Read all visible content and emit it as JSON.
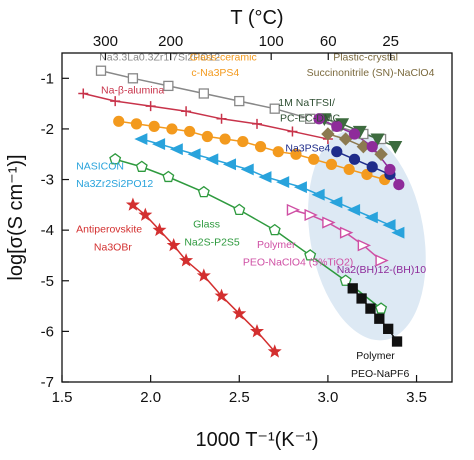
{
  "chart_data": {
    "type": "scatter",
    "xlabel": "1000 T⁻¹(K⁻¹)",
    "ylabel": "log[σ(S cm⁻¹)]",
    "top_axis_label": "T (°C)",
    "xlim": [
      1.5,
      3.7
    ],
    "ylim": [
      -7,
      -0.5
    ],
    "x_ticks": [
      1.5,
      2.0,
      2.5,
      3.0,
      3.5
    ],
    "x_tick_labels": [
      "1.5",
      "2.0",
      "2.5",
      "3.0",
      "3.5"
    ],
    "y_ticks": [
      -7,
      -6,
      -5,
      -4,
      -3,
      -2,
      -1
    ],
    "y_tick_labels": [
      "-7",
      "-6",
      "-5",
      "-4",
      "-3",
      "-2",
      "-1"
    ],
    "top_ticks": [
      {
        "label": "300",
        "x": 1.745
      },
      {
        "label": "200",
        "x": 2.113
      },
      {
        "label": "100",
        "x": 2.68
      },
      {
        "label": "60",
        "x": 3.002
      },
      {
        "label": "25",
        "x": 3.354
      }
    ],
    "grid": false,
    "highlight_region": {
      "cx": 3.22,
      "cy": -4.1,
      "rx": 0.32,
      "ry": 2.1,
      "color": "#dde9f4"
    },
    "series": [
      {
        "name": "Na3.3La0.3Zr1.7Si2PO12",
        "marker": "square-open",
        "color": "#888888",
        "x": [
          1.72,
          1.9,
          2.1,
          2.3,
          2.5,
          2.7,
          2.9,
          3.05,
          3.2,
          3.3
        ],
        "y": [
          -0.85,
          -1.0,
          -1.15,
          -1.3,
          -1.45,
          -1.6,
          -1.8,
          -1.95,
          -2.1,
          -2.2
        ]
      },
      {
        "name": "Na-β-alumina",
        "marker": "plus",
        "color": "#c8334a",
        "x": [
          1.62,
          1.8,
          2.0,
          2.2,
          2.4,
          2.6,
          2.8,
          3.0
        ],
        "y": [
          -1.3,
          -1.45,
          -1.55,
          -1.65,
          -1.8,
          -1.9,
          -2.05,
          -2.2
        ]
      },
      {
        "name": "Glass-ceramic c-Na3PS4",
        "marker": "circle",
        "color": "#f39a1e",
        "x": [
          1.82,
          1.92,
          2.02,
          2.12,
          2.22,
          2.32,
          2.42,
          2.52,
          2.62,
          2.72,
          2.82,
          2.92,
          3.02,
          3.12,
          3.22,
          3.32
        ],
        "y": [
          -1.85,
          -1.9,
          -1.95,
          -2.0,
          -2.05,
          -2.15,
          -2.2,
          -2.25,
          -2.35,
          -2.45,
          -2.5,
          -2.6,
          -2.7,
          -2.8,
          -2.9,
          -3.0
        ]
      },
      {
        "name": "NASICON Na3Zr2Si2PO12",
        "marker": "triangle-left",
        "color": "#29a3dc",
        "x": [
          1.95,
          2.05,
          2.15,
          2.25,
          2.35,
          2.45,
          2.55,
          2.65,
          2.75,
          2.85,
          2.95,
          3.05,
          3.15,
          3.25,
          3.35,
          3.4
        ],
        "y": [
          -2.2,
          -2.3,
          -2.4,
          -2.5,
          -2.6,
          -2.7,
          -2.8,
          -2.95,
          -3.05,
          -3.15,
          -3.3,
          -3.45,
          -3.6,
          -3.75,
          -3.9,
          -4.05
        ]
      },
      {
        "name": "Glass Na2S-P2S5",
        "marker": "pentagon-open",
        "color": "#2e9a3e",
        "x": [
          1.8,
          1.95,
          2.1,
          2.3,
          2.5,
          2.7,
          2.9,
          3.1,
          3.3
        ],
        "y": [
          -2.6,
          -2.75,
          -2.95,
          -3.25,
          -3.6,
          -4.0,
          -4.5,
          -5.0,
          -5.55
        ]
      },
      {
        "name": "Antiperovskite Na3OBr",
        "marker": "star",
        "color": "#d32f2f",
        "x": [
          1.9,
          1.97,
          2.05,
          2.13,
          2.2,
          2.3,
          2.4,
          2.5,
          2.6,
          2.7
        ],
        "y": [
          -3.5,
          -3.7,
          -4.0,
          -4.3,
          -4.6,
          -4.9,
          -5.3,
          -5.65,
          -6.0,
          -6.4
        ]
      },
      {
        "name": "Na3PSe4",
        "marker": "circle",
        "color": "#1f2c8a",
        "x": [
          3.05,
          3.15,
          3.25,
          3.35
        ],
        "y": [
          -2.45,
          -2.6,
          -2.75,
          -2.9
        ]
      },
      {
        "name": "1M NaTFSI/ PC-EC-DMC",
        "marker": "triangle-down",
        "color": "#3d6b3f",
        "x": [
          2.98,
          3.08,
          3.18,
          3.28,
          3.38
        ],
        "y": [
          -1.8,
          -1.9,
          -2.05,
          -2.2,
          -2.35
        ]
      },
      {
        "name": "Plastic-crystal Succinonitrile (SN)-NaClO4",
        "marker": "diamond",
        "color": "#8c7a50",
        "x": [
          3.0,
          3.1,
          3.2,
          3.3
        ],
        "y": [
          -2.1,
          -2.2,
          -2.35,
          -2.5
        ]
      },
      {
        "name": "Na2(BH)12-(BH)10",
        "marker": "circle",
        "color": "#8e2b9a",
        "x": [
          2.95,
          3.05,
          3.15,
          3.25,
          3.35,
          3.4
        ],
        "y": [
          -1.8,
          -1.95,
          -2.1,
          -2.35,
          -2.8,
          -3.1
        ]
      },
      {
        "name": "Polymer PEO-NaClO4 (5%TiO2)",
        "marker": "triangle-right-open",
        "color": "#cf4fa4",
        "x": [
          2.8,
          2.9,
          3.0,
          3.1,
          3.2,
          3.3
        ],
        "y": [
          -3.6,
          -3.7,
          -3.85,
          -4.05,
          -4.3,
          -4.6
        ]
      },
      {
        "name": "Polymer PEO-NaPF6",
        "marker": "square",
        "color": "#111111",
        "x": [
          3.14,
          3.19,
          3.24,
          3.29,
          3.34,
          3.39
        ],
        "y": [
          -5.15,
          -5.35,
          -5.55,
          -5.75,
          -5.95,
          -6.2
        ]
      }
    ],
    "annotations": [
      {
        "text": "Na3.3La0.3Zr1.7Si2PO12",
        "x": 1.71,
        "y": -0.65,
        "color": "#888888"
      },
      {
        "text": "Na-β-alumina",
        "x": 1.72,
        "y": -1.3,
        "color": "#c8334a"
      },
      {
        "text": "Glass-ceramic",
        "x": 2.22,
        "y": -0.65,
        "color": "#f39a1e"
      },
      {
        "text": "c-Na3PS4",
        "x": 2.23,
        "y": -0.95,
        "color": "#f39a1e"
      },
      {
        "text": "Plastic-crystal",
        "x": 3.03,
        "y": -0.65,
        "color": "#7b6a3e"
      },
      {
        "text": "Succinonitrile (SN)-NaClO4",
        "x": 2.88,
        "y": -0.95,
        "color": "#7b6a3e"
      },
      {
        "text": "1M NaTFSI/",
        "x": 2.72,
        "y": -1.55,
        "color": "#2f4f33"
      },
      {
        "text": "PC-EC-DMC",
        "x": 2.73,
        "y": -1.85,
        "color": "#2f4f33"
      },
      {
        "text": "Na3PSe4",
        "x": 2.76,
        "y": -2.45,
        "color": "#1f2c8a"
      },
      {
        "text": "NASICON",
        "x": 1.58,
        "y": -2.8,
        "color": "#29a3dc"
      },
      {
        "text": "Na3Zr2Si2PO12",
        "x": 1.58,
        "y": -3.15,
        "color": "#29a3dc"
      },
      {
        "text": "Glass",
        "x": 2.24,
        "y": -3.95,
        "color": "#2e9a3e"
      },
      {
        "text": "Na2S-P2S5",
        "x": 2.19,
        "y": -4.3,
        "color": "#2e9a3e"
      },
      {
        "text": "Antiperovskite",
        "x": 1.58,
        "y": -4.05,
        "color": "#d32f2f"
      },
      {
        "text": "Na3OBr",
        "x": 1.68,
        "y": -4.4,
        "color": "#d32f2f"
      },
      {
        "text": "Polymer",
        "x": 2.6,
        "y": -4.35,
        "color": "#cf4fa4"
      },
      {
        "text": "PEO-NaClO4 (5%TiO2)",
        "x": 2.52,
        "y": -4.7,
        "color": "#cf4fa4"
      },
      {
        "text": "Na2(BH)12-(BH)10",
        "x": 3.05,
        "y": -4.85,
        "color": "#8e2b9a"
      },
      {
        "text": "Polymer",
        "x": 3.16,
        "y": -6.55,
        "color": "#111111"
      },
      {
        "text": "PEO-NaPF6",
        "x": 3.13,
        "y": -6.9,
        "color": "#111111"
      }
    ]
  }
}
